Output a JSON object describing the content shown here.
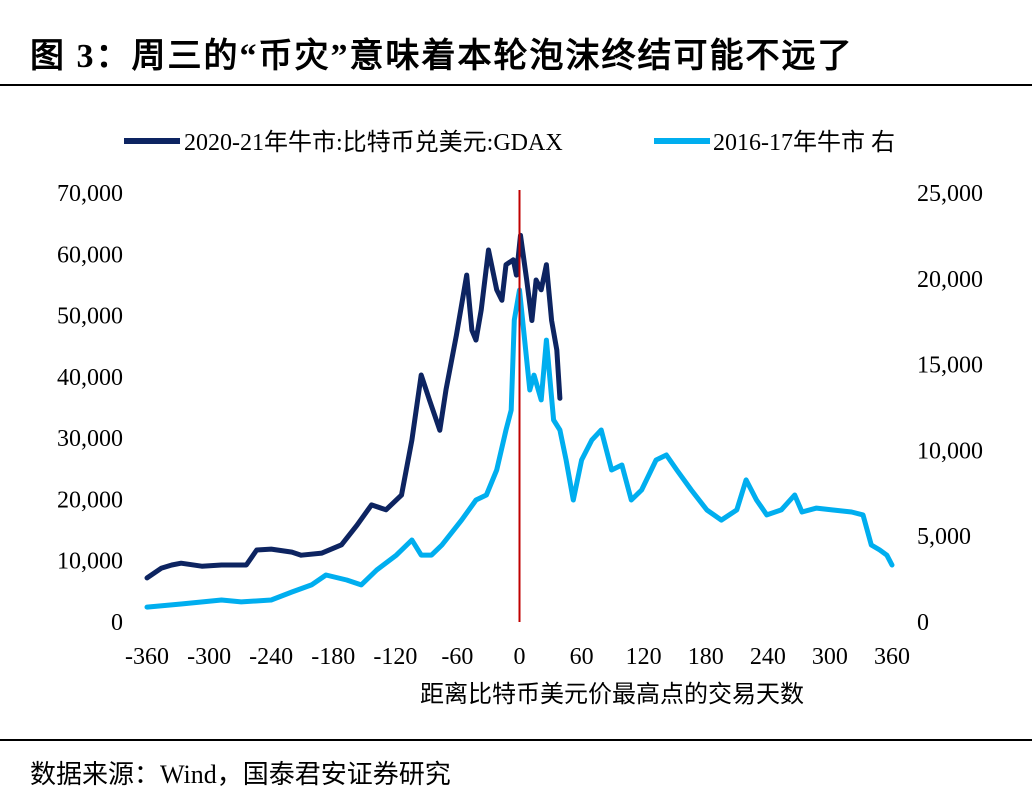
{
  "header": {
    "title": "图 3：周三的“币灾”意味着本轮泡沫终结可能不远了"
  },
  "footer": {
    "source": "数据来源：Wind，国泰君安证券研究"
  },
  "chart_data": {
    "type": "line",
    "title": "",
    "xlabel": "距离比特币美元价最高点的交易天数",
    "xlim": [
      -360,
      360
    ],
    "xticks": [
      -360,
      -300,
      -240,
      -180,
      -120,
      -60,
      0,
      60,
      120,
      180,
      240,
      300,
      360
    ],
    "ylim_left": [
      0,
      70000
    ],
    "yticks_left": [
      "0",
      "10,000",
      "20,000",
      "30,000",
      "40,000",
      "50,000",
      "60,000",
      "70,000"
    ],
    "ylim_right": [
      0,
      25000
    ],
    "yticks_right": [
      "0",
      "5,000",
      "10,000",
      "15,000",
      "20,000",
      "25,000"
    ],
    "grid": false,
    "legend_position": "top",
    "reference_line": {
      "x": 0,
      "color": "#c00000"
    },
    "series": [
      {
        "name": "2020-21年牛市:比特币兑美元:GDAX",
        "axis": "left",
        "color": "#0d2461",
        "x": [
          -360,
          -346,
          -336,
          -327,
          -307,
          -288,
          -264,
          -254,
          -240,
          -220,
          -211,
          -191,
          -172,
          -157,
          -143,
          -129,
          -114,
          -104,
          -95,
          -87,
          -77,
          -71,
          -61,
          -51,
          -46,
          -42,
          -37,
          -30,
          -22,
          -17,
          -13,
          -6,
          -3,
          1,
          7,
          12,
          16,
          21,
          26,
          31,
          36,
          39
        ],
        "y": [
          7200,
          8800,
          9300,
          9600,
          9100,
          9300,
          9300,
          11750,
          11900,
          11400,
          10900,
          11250,
          12600,
          15800,
          19100,
          18300,
          20700,
          29700,
          40300,
          36200,
          31300,
          37900,
          46800,
          56600,
          47600,
          46000,
          50900,
          60700,
          54200,
          52500,
          58300,
          59100,
          56600,
          63100,
          55800,
          49200,
          55800,
          54200,
          58300,
          49200,
          44400,
          36500
        ]
      },
      {
        "name": "2016-17年牛市  右",
        "axis": "right",
        "color": "#00aeef",
        "x": [
          -360,
          -327,
          -288,
          -269,
          -240,
          -220,
          -201,
          -187,
          -167,
          -153,
          -138,
          -119,
          -104,
          -95,
          -85,
          -75,
          -56,
          -42,
          -32,
          -22,
          -13,
          -8,
          -5,
          0,
          4,
          10,
          14,
          21,
          26,
          33,
          39,
          45,
          52,
          60,
          70,
          79,
          89,
          99,
          108,
          118,
          132,
          142,
          152,
          166,
          181,
          195,
          210,
          219,
          229,
          239,
          253,
          266,
          273,
          287,
          302,
          321,
          332,
          340,
          348,
          355,
          360
        ],
        "y": [
          870,
          1050,
          1280,
          1170,
          1280,
          1750,
          2160,
          2740,
          2450,
          2160,
          3030,
          3900,
          4780,
          3900,
          3900,
          4490,
          5940,
          7110,
          7400,
          8860,
          11190,
          12350,
          17600,
          19350,
          17020,
          13520,
          14390,
          12940,
          16430,
          11770,
          11190,
          9440,
          7110,
          9440,
          10610,
          11190,
          8860,
          9150,
          7110,
          7690,
          9440,
          9730,
          8860,
          7690,
          6530,
          5940,
          6530,
          8280,
          7110,
          6240,
          6530,
          7400,
          6410,
          6640,
          6530,
          6410,
          6240,
          4490,
          4200,
          3900,
          3320
        ]
      }
    ]
  }
}
